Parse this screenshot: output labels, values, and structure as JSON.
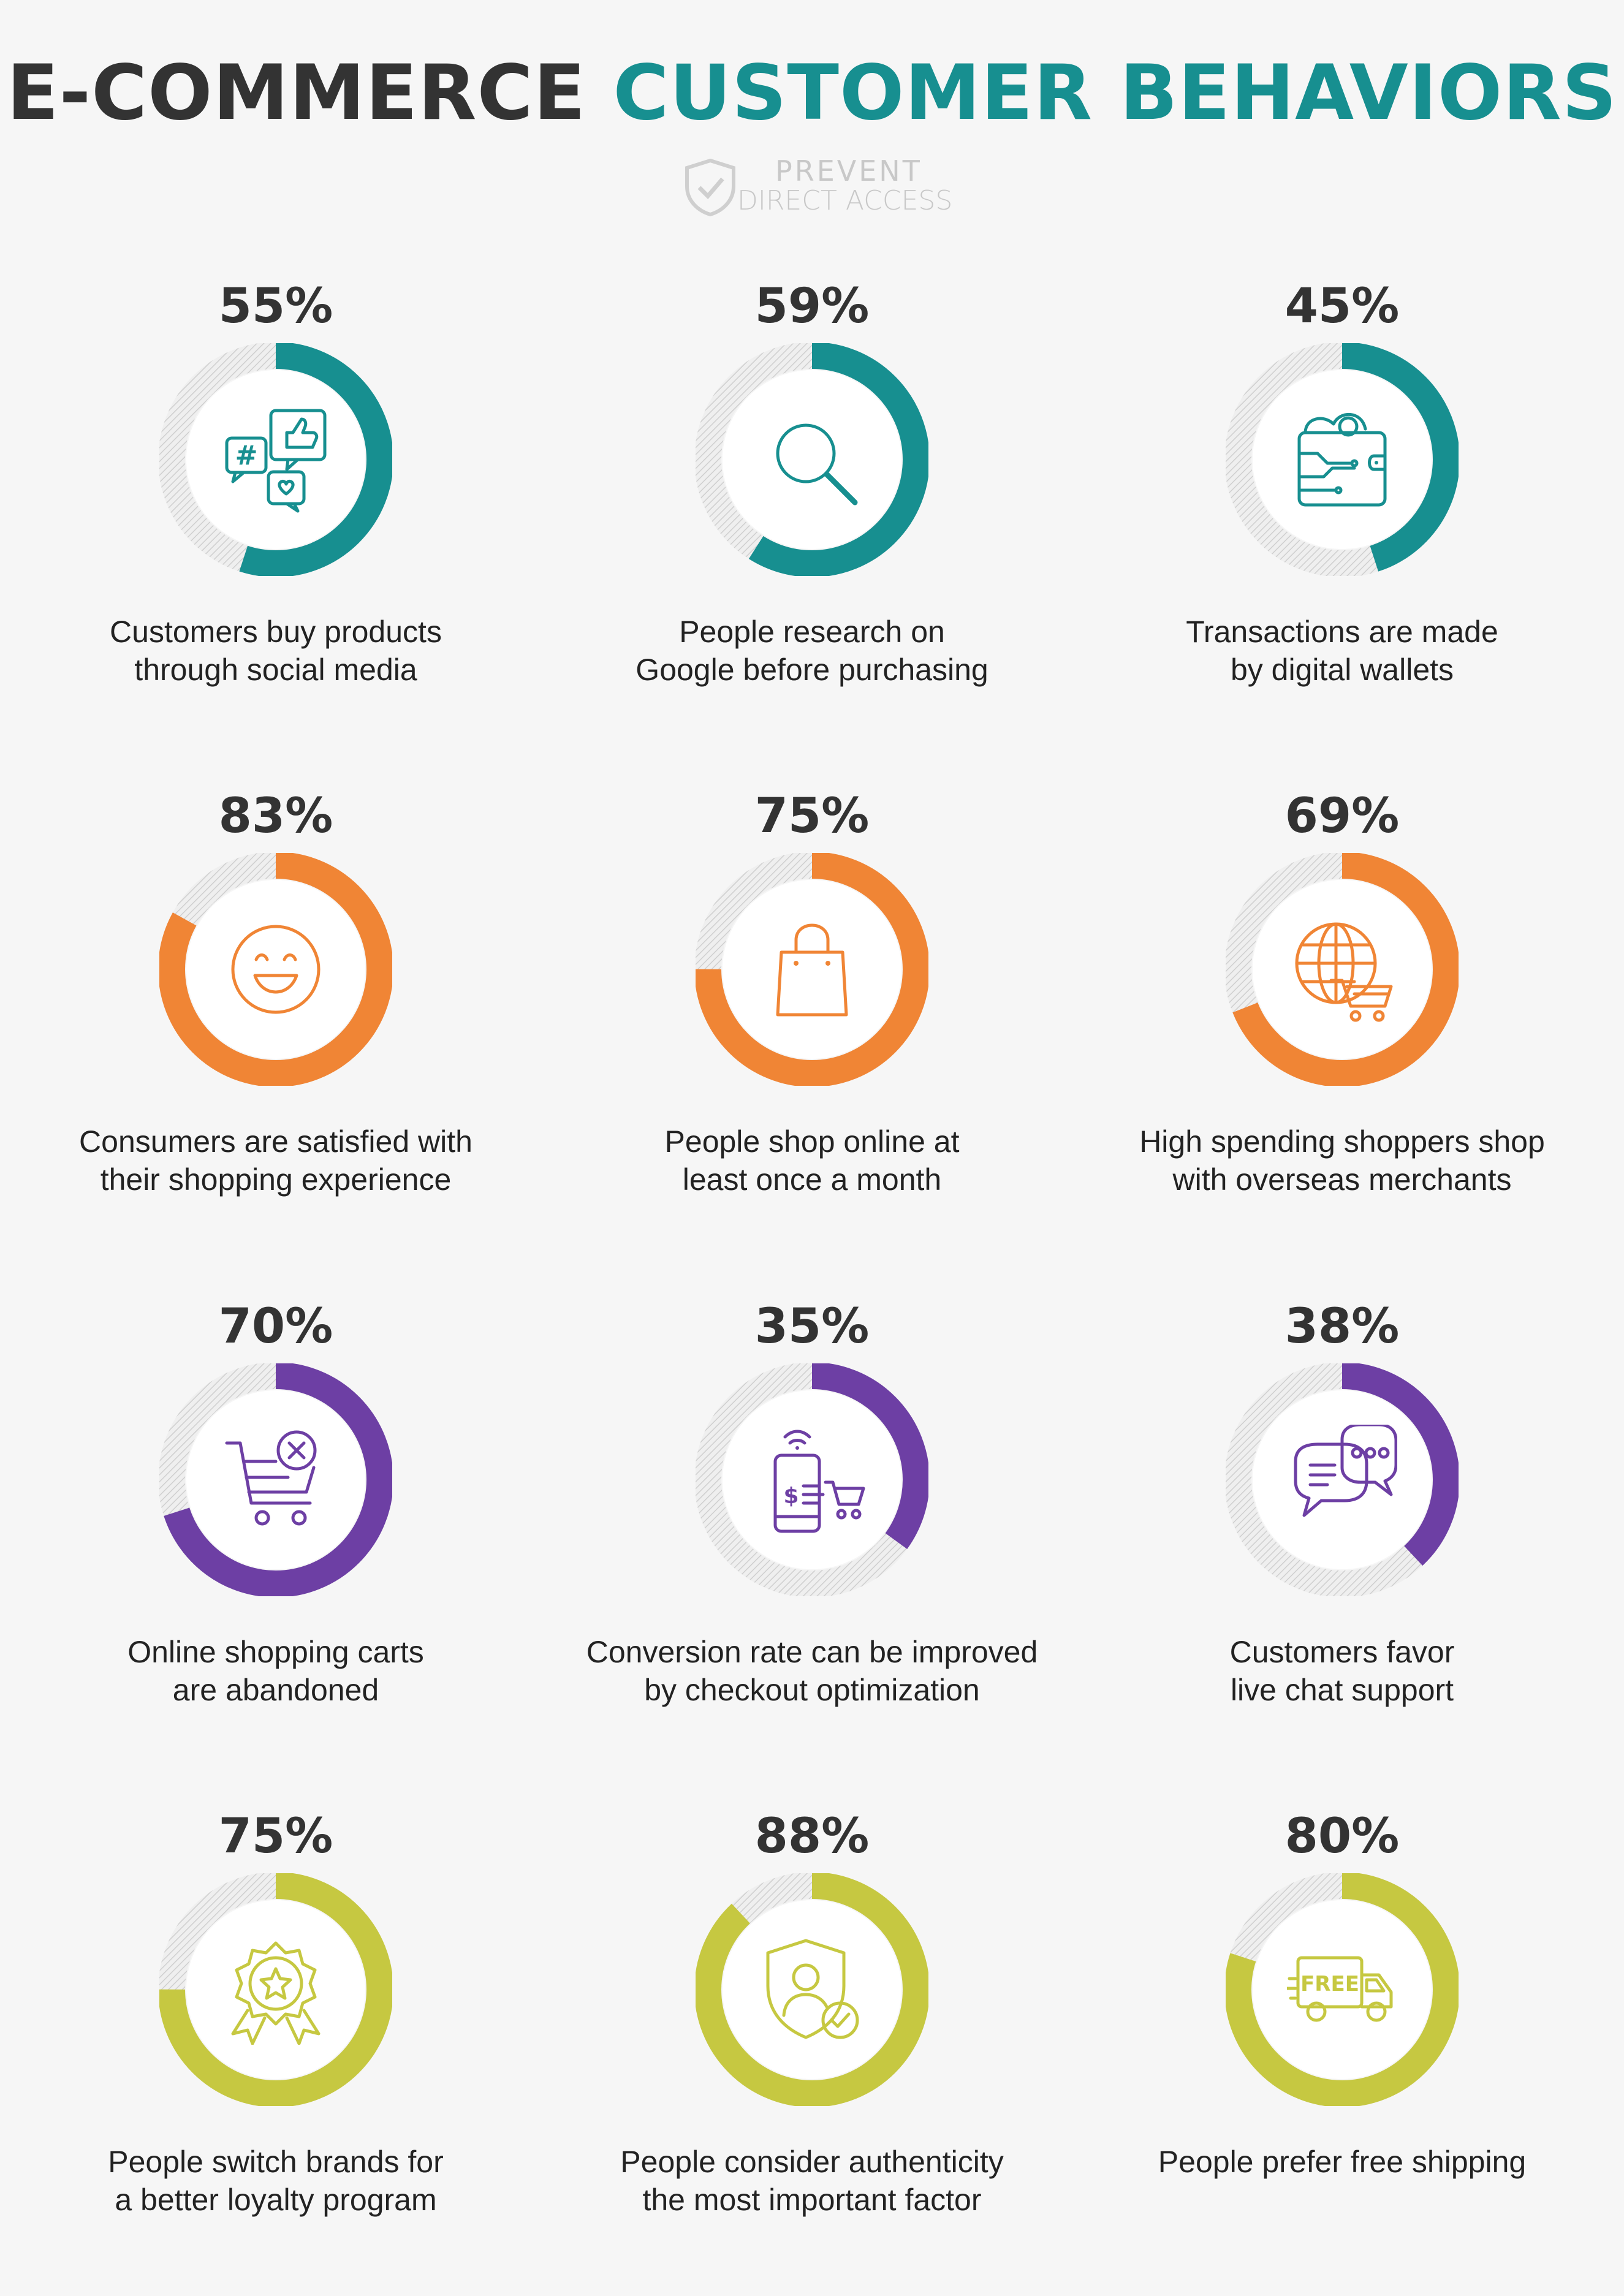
{
  "header": {
    "title_part1": "E-COMMERCE",
    "title_part2": "CUSTOMER BEHAVIORS",
    "brand_line1": "PREVENT",
    "brand_line2": "DIRECT ACCESS"
  },
  "colors": {
    "teal": "#178f90",
    "orange": "#f08535",
    "purple": "#6d3fa4",
    "lime": "#c6c841",
    "track": "#d8d8d8"
  },
  "stats": [
    {
      "percent": "55%",
      "value": 55,
      "color": "teal",
      "icon": "social-media-icon",
      "label_lines": [
        "Customers buy products",
        "through social media"
      ]
    },
    {
      "percent": "59%",
      "value": 59,
      "color": "teal",
      "icon": "search-icon",
      "label_lines": [
        "People research on",
        "Google before purchasing"
      ]
    },
    {
      "percent": "45%",
      "value": 45,
      "color": "teal",
      "icon": "digital-wallet-icon",
      "label_lines": [
        "Transactions are made",
        "by digital wallets"
      ]
    },
    {
      "percent": "83%",
      "value": 83,
      "color": "orange",
      "icon": "smiley-icon",
      "label_lines": [
        "Consumers are satisfied with",
        "their shopping experience"
      ]
    },
    {
      "percent": "75%",
      "value": 75,
      "color": "orange",
      "icon": "shopping-bag-icon",
      "label_lines": [
        "People shop online at",
        "least once a month"
      ]
    },
    {
      "percent": "69%",
      "value": 69,
      "color": "orange",
      "icon": "global-cart-icon",
      "label_lines": [
        "High spending shoppers shop",
        "with overseas merchants"
      ]
    },
    {
      "percent": "70%",
      "value": 70,
      "color": "purple",
      "icon": "abandoned-cart-icon",
      "label_lines": [
        "Online shopping carts",
        "are abandoned"
      ]
    },
    {
      "percent": "35%",
      "value": 35,
      "color": "purple",
      "icon": "mobile-checkout-icon",
      "label_lines": [
        "Conversion rate can be improved",
        "by checkout optimization"
      ]
    },
    {
      "percent": "38%",
      "value": 38,
      "color": "purple",
      "icon": "live-chat-icon",
      "label_lines": [
        "Customers favor",
        "live chat support"
      ]
    },
    {
      "percent": "75%",
      "value": 75,
      "color": "lime",
      "icon": "loyalty-badge-icon",
      "label_lines": [
        "People switch brands for",
        "a better loyalty program"
      ]
    },
    {
      "percent": "88%",
      "value": 88,
      "color": "lime",
      "icon": "authenticity-shield-icon",
      "label_lines": [
        "People consider authenticity",
        "the most important factor"
      ]
    },
    {
      "percent": "80%",
      "value": 80,
      "color": "lime",
      "icon": "free-shipping-icon",
      "label_lines": [
        "People prefer free shipping"
      ]
    }
  ],
  "icon_texts": {
    "hashtag": "#",
    "free": "FREE",
    "dollar": "$"
  }
}
